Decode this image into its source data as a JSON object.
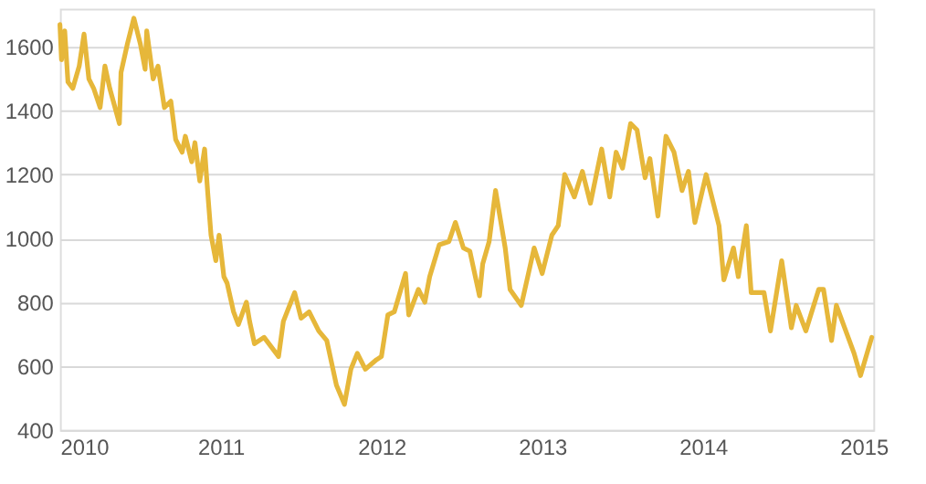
{
  "chart_data": {
    "type": "line",
    "xlim": [
      2010,
      2015.06
    ],
    "xticks": [
      2010,
      2011,
      2012,
      2013,
      2014,
      2015
    ],
    "ylim": [
      400,
      1720
    ],
    "yticks": [
      400,
      600,
      800,
      1000,
      1200,
      1400,
      1600
    ],
    "grid": "y",
    "marker": "none",
    "line_style": "solid",
    "series": [
      {
        "color": "#e6b73a",
        "x": [
          2010.0,
          2010.01,
          2010.03,
          2010.05,
          2010.08,
          2010.12,
          2010.15,
          2010.18,
          2010.21,
          2010.25,
          2010.28,
          2010.31,
          2010.37,
          2010.38,
          2010.42,
          2010.46,
          2010.5,
          2010.53,
          2010.54,
          2010.58,
          2010.61,
          2010.65,
          2010.69,
          2010.72,
          2010.76,
          2010.78,
          2010.82,
          2010.84,
          2010.87,
          2010.9,
          2010.92,
          2010.94,
          2010.97,
          2010.99,
          2011.02,
          2011.04,
          2011.08,
          2011.11,
          2011.16,
          2011.18,
          2011.21,
          2011.27,
          2011.33,
          2011.36,
          2011.39,
          2011.46,
          2011.5,
          2011.55,
          2011.61,
          2011.66,
          2011.72,
          2011.77,
          2011.81,
          2011.85,
          2011.9,
          2011.97,
          2012.0,
          2012.04,
          2012.08,
          2012.15,
          2012.17,
          2012.23,
          2012.27,
          2012.3,
          2012.36,
          2012.42,
          2012.46,
          2012.51,
          2012.55,
          2012.61,
          2012.63,
          2012.67,
          2012.71,
          2012.77,
          2012.8,
          2012.87,
          2012.91,
          2012.95,
          2013.0,
          2013.06,
          2013.1,
          2013.14,
          2013.2,
          2013.25,
          2013.3,
          2013.37,
          2013.42,
          2013.46,
          2013.5,
          2013.55,
          2013.59,
          2013.64,
          2013.67,
          2013.72,
          2013.77,
          2013.82,
          2013.87,
          2013.91,
          2013.95,
          2014.02,
          2014.1,
          2014.13,
          2014.19,
          2014.22,
          2014.27,
          2014.3,
          2014.38,
          2014.42,
          2014.49,
          2014.55,
          2014.58,
          2014.64,
          2014.72,
          2014.75,
          2014.8,
          2014.83,
          2014.94,
          2014.98,
          2015.05
        ],
        "values": [
          1670,
          1560,
          1650,
          1490,
          1470,
          1540,
          1640,
          1500,
          1470,
          1410,
          1540,
          1470,
          1360,
          1520,
          1610,
          1690,
          1610,
          1530,
          1650,
          1500,
          1540,
          1410,
          1430,
          1310,
          1270,
          1320,
          1240,
          1300,
          1180,
          1280,
          1140,
          1010,
          930,
          1010,
          880,
          860,
          770,
          730,
          800,
          740,
          670,
          690,
          650,
          630,
          740,
          830,
          750,
          770,
          710,
          680,
          540,
          480,
          590,
          640,
          590,
          620,
          630,
          760,
          770,
          890,
          760,
          840,
          800,
          880,
          980,
          990,
          1050,
          970,
          960,
          820,
          920,
          990,
          1150,
          970,
          840,
          790,
          880,
          970,
          890,
          1010,
          1040,
          1200,
          1130,
          1210,
          1110,
          1280,
          1130,
          1270,
          1220,
          1360,
          1340,
          1190,
          1250,
          1070,
          1320,
          1270,
          1150,
          1210,
          1050,
          1200,
          1040,
          870,
          970,
          880,
          1040,
          830,
          830,
          710,
          930,
          720,
          790,
          710,
          840,
          840,
          680,
          790,
          640,
          570,
          690
        ]
      }
    ]
  }
}
